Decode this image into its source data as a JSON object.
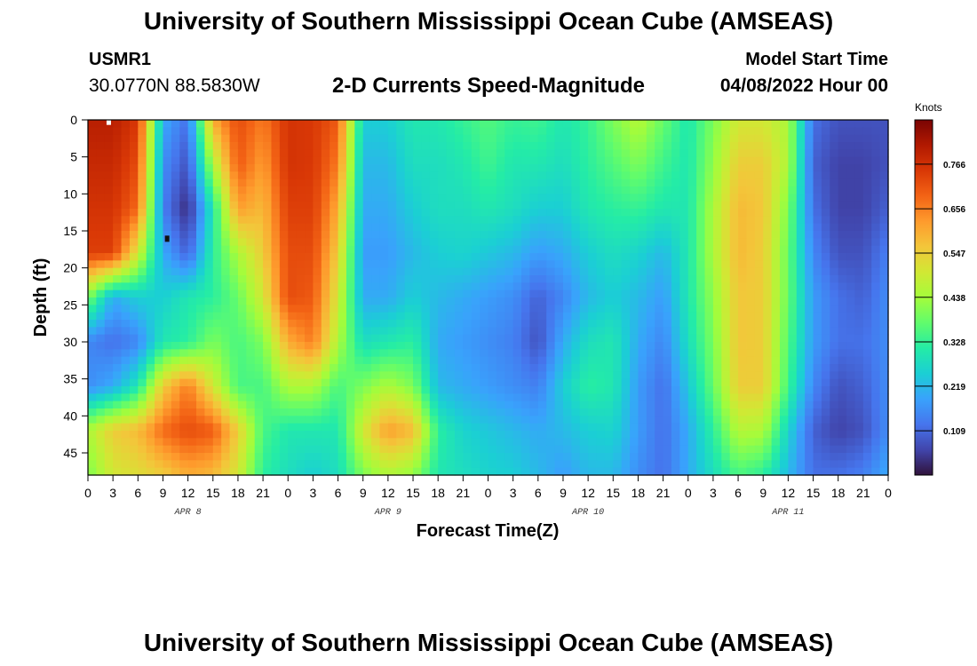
{
  "page": {
    "title": "University of Southern Mississippi Ocean Cube (AMSEAS)",
    "title_repeat": "University of Southern Mississippi Ocean Cube (AMSEAS)",
    "station_id": "USMR1",
    "station_coords": "30.0770N  88.5830W",
    "model_start_label": "Model Start Time",
    "model_start_value": "04/08/2022 Hour 00"
  },
  "chart_data": {
    "type": "heatmap",
    "title": "2-D Currents Speed-Magnitude",
    "xlabel": "Forecast Time(Z)",
    "ylabel": "Depth (ft)",
    "x_range_hours": [
      0,
      96
    ],
    "y_range_ft": [
      0,
      48
    ],
    "y_inverted": true,
    "x_ticks": [
      "0",
      "3",
      "6",
      "9",
      "12",
      "15",
      "18",
      "21",
      "0",
      "3",
      "6",
      "9",
      "12",
      "15",
      "18",
      "21",
      "0",
      "3",
      "6",
      "9",
      "12",
      "15",
      "18",
      "21",
      "0",
      "3",
      "6",
      "9",
      "12",
      "15",
      "18",
      "21",
      "0"
    ],
    "date_labels": [
      "APR 8",
      "APR 9",
      "APR 10",
      "APR 11"
    ],
    "y_ticks": [
      "0",
      "5",
      "10",
      "15",
      "20",
      "25",
      "30",
      "35",
      "40",
      "45"
    ],
    "colorbar": {
      "units": "Knots",
      "range": [
        0.0,
        0.875
      ],
      "ticks": [
        "0.766",
        "0.656",
        "0.547",
        "0.438",
        "0.328",
        "0.219",
        "0.109"
      ],
      "colormap": [
        "#30123b",
        "#4145ab",
        "#4675ed",
        "#39a2fc",
        "#1bcfd4",
        "#24eca6",
        "#61fc6c",
        "#a4fc3b",
        "#d1e834",
        "#f3c63a",
        "#fe9b2d",
        "#f36315",
        "#d93806",
        "#b11901",
        "#7a0403"
      ]
    },
    "grid_hours": [
      0,
      3,
      6,
      9,
      12,
      15,
      18,
      21,
      24,
      27,
      30,
      33,
      36,
      39,
      42,
      45,
      48,
      51,
      54,
      57,
      60,
      63,
      66,
      69,
      72,
      75,
      78,
      81,
      84,
      87,
      90,
      93,
      96
    ],
    "grid_depths_ft": [
      0,
      6,
      12,
      18,
      24,
      30,
      36,
      42,
      48
    ],
    "speed_knots": [
      [
        0.8,
        0.8,
        0.75,
        0.2,
        0.12,
        0.6,
        0.72,
        0.66,
        0.76,
        0.75,
        0.7,
        0.25,
        0.25,
        0.3,
        0.3,
        0.33,
        0.36,
        0.33,
        0.34,
        0.3,
        0.33,
        0.4,
        0.46,
        0.38,
        0.3,
        0.4,
        0.5,
        0.5,
        0.45,
        0.12,
        0.08,
        0.08,
        0.08
      ],
      [
        0.78,
        0.78,
        0.72,
        0.16,
        0.08,
        0.45,
        0.7,
        0.62,
        0.76,
        0.75,
        0.66,
        0.22,
        0.22,
        0.28,
        0.28,
        0.3,
        0.34,
        0.3,
        0.3,
        0.28,
        0.32,
        0.36,
        0.4,
        0.34,
        0.3,
        0.42,
        0.55,
        0.55,
        0.45,
        0.1,
        0.06,
        0.06,
        0.08
      ],
      [
        0.76,
        0.76,
        0.68,
        0.14,
        0.03,
        0.3,
        0.62,
        0.58,
        0.74,
        0.74,
        0.6,
        0.2,
        0.2,
        0.25,
        0.28,
        0.28,
        0.3,
        0.28,
        0.25,
        0.25,
        0.3,
        0.32,
        0.33,
        0.3,
        0.3,
        0.45,
        0.58,
        0.56,
        0.4,
        0.12,
        0.06,
        0.06,
        0.1
      ],
      [
        0.74,
        0.74,
        0.5,
        0.2,
        0.1,
        0.32,
        0.45,
        0.55,
        0.72,
        0.72,
        0.55,
        0.18,
        0.18,
        0.22,
        0.25,
        0.26,
        0.24,
        0.22,
        0.18,
        0.2,
        0.25,
        0.28,
        0.26,
        0.22,
        0.3,
        0.45,
        0.58,
        0.55,
        0.38,
        0.15,
        0.08,
        0.08,
        0.14
      ],
      [
        0.4,
        0.2,
        0.25,
        0.25,
        0.3,
        0.32,
        0.38,
        0.5,
        0.72,
        0.7,
        0.5,
        0.2,
        0.2,
        0.25,
        0.22,
        0.2,
        0.18,
        0.16,
        0.1,
        0.15,
        0.22,
        0.25,
        0.22,
        0.18,
        0.3,
        0.42,
        0.56,
        0.55,
        0.38,
        0.18,
        0.12,
        0.1,
        0.16
      ],
      [
        0.15,
        0.12,
        0.15,
        0.3,
        0.32,
        0.4,
        0.35,
        0.4,
        0.6,
        0.66,
        0.45,
        0.28,
        0.3,
        0.32,
        0.2,
        0.18,
        0.16,
        0.14,
        0.08,
        0.2,
        0.28,
        0.3,
        0.2,
        0.15,
        0.28,
        0.4,
        0.56,
        0.55,
        0.36,
        0.18,
        0.12,
        0.12,
        0.16
      ],
      [
        0.16,
        0.2,
        0.3,
        0.55,
        0.66,
        0.5,
        0.35,
        0.35,
        0.45,
        0.45,
        0.35,
        0.4,
        0.45,
        0.4,
        0.22,
        0.2,
        0.18,
        0.16,
        0.14,
        0.25,
        0.32,
        0.3,
        0.18,
        0.12,
        0.24,
        0.38,
        0.55,
        0.55,
        0.34,
        0.15,
        0.08,
        0.1,
        0.16
      ],
      [
        0.45,
        0.55,
        0.58,
        0.68,
        0.72,
        0.7,
        0.55,
        0.35,
        0.3,
        0.3,
        0.3,
        0.5,
        0.62,
        0.58,
        0.32,
        0.26,
        0.24,
        0.22,
        0.2,
        0.22,
        0.25,
        0.26,
        0.18,
        0.12,
        0.2,
        0.32,
        0.46,
        0.45,
        0.26,
        0.1,
        0.06,
        0.08,
        0.16
      ],
      [
        0.4,
        0.5,
        0.52,
        0.55,
        0.6,
        0.58,
        0.5,
        0.32,
        0.28,
        0.25,
        0.28,
        0.4,
        0.45,
        0.42,
        0.3,
        0.28,
        0.26,
        0.25,
        0.22,
        0.18,
        0.22,
        0.22,
        0.16,
        0.12,
        0.2,
        0.28,
        0.35,
        0.32,
        0.22,
        0.12,
        0.12,
        0.14,
        0.2
      ]
    ],
    "marks": [
      {
        "name": "marker-white-top-left",
        "hour": 2.5,
        "depth_ft": 0.2,
        "color": "#ffffff"
      },
      {
        "name": "marker-black-low",
        "hour": 9.5,
        "depth_ft": 16,
        "color": "#111111"
      }
    ]
  }
}
